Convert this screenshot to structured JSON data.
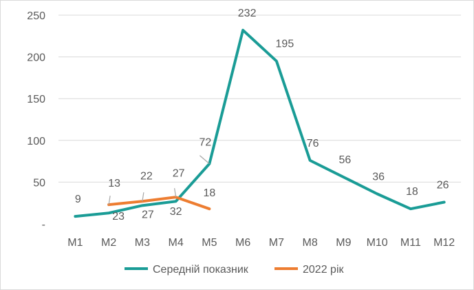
{
  "chart_data": {
    "type": "line",
    "categories": [
      "M1",
      "M2",
      "M3",
      "M4",
      "M5",
      "M6",
      "M7",
      "M8",
      "M9",
      "M10",
      "M11",
      "M12"
    ],
    "y_ticks": [
      "-",
      "50",
      "100",
      "150",
      "200",
      "250"
    ],
    "ylim": [
      0,
      250
    ],
    "grid": true,
    "legend_position": "bottom",
    "series": [
      {
        "name": "Середній показник",
        "color": "#1a9c96",
        "values": [
          9,
          13,
          22,
          27,
          72,
          232,
          195,
          76,
          56,
          36,
          18,
          26
        ],
        "labels": [
          "9",
          "13",
          "22",
          "27",
          "72",
          "232",
          "195",
          "76",
          "56",
          "36",
          "18",
          "26"
        ]
      },
      {
        "name": "2022 рік",
        "color": "#ed7d31",
        "values": [
          null,
          23,
          27,
          32,
          18,
          null,
          null,
          null,
          null,
          null,
          null,
          null
        ],
        "labels": [
          null,
          "23",
          "27",
          "32",
          "18",
          null,
          null,
          null,
          null,
          null,
          null,
          null
        ]
      }
    ]
  }
}
